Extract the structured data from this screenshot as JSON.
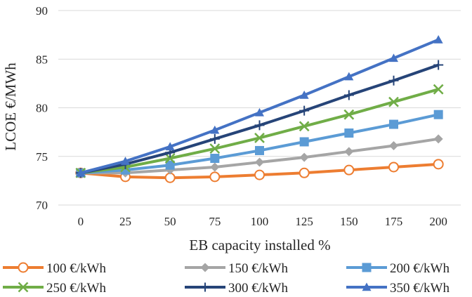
{
  "chart_data": {
    "type": "line",
    "title": "",
    "xlabel": "EB capacity installed %",
    "ylabel": "LCOE €/MWh",
    "categories": [
      "0",
      "25",
      "50",
      "75",
      "100",
      "125",
      "150",
      "175",
      "200"
    ],
    "ylim": [
      70,
      90
    ],
    "yticks": [
      "70",
      "75",
      "80",
      "85",
      "90"
    ],
    "grid": "horizontal",
    "legend": "bottom",
    "series": [
      {
        "name": "100 €/kWh",
        "color": "#ED7D31",
        "marker": "circle-open",
        "values": [
          73.3,
          72.9,
          72.8,
          72.9,
          73.1,
          73.3,
          73.6,
          73.9,
          74.2
        ]
      },
      {
        "name": "150 €/kWh",
        "color": "#A5A5A5",
        "marker": "diamond",
        "values": [
          73.3,
          73.3,
          73.6,
          73.9,
          74.4,
          74.9,
          75.5,
          76.1,
          76.8
        ]
      },
      {
        "name": "200 €/kWh",
        "color": "#5B9BD5",
        "marker": "square",
        "values": [
          73.3,
          73.6,
          74.1,
          74.8,
          75.6,
          76.5,
          77.4,
          78.3,
          79.3
        ]
      },
      {
        "name": "250 €/kWh",
        "color": "#70AD47",
        "marker": "x",
        "values": [
          73.3,
          73.9,
          74.8,
          75.8,
          76.9,
          78.1,
          79.3,
          80.6,
          81.9
        ]
      },
      {
        "name": "300 €/kWh",
        "color": "#264478",
        "marker": "plus",
        "values": [
          73.3,
          74.2,
          75.4,
          76.8,
          78.2,
          79.7,
          81.3,
          82.8,
          84.4
        ]
      },
      {
        "name": "350 €/kWh",
        "color": "#4472C4",
        "marker": "triangle",
        "values": [
          73.3,
          74.5,
          76.0,
          77.7,
          79.5,
          81.3,
          83.2,
          85.1,
          87.0
        ]
      }
    ]
  }
}
